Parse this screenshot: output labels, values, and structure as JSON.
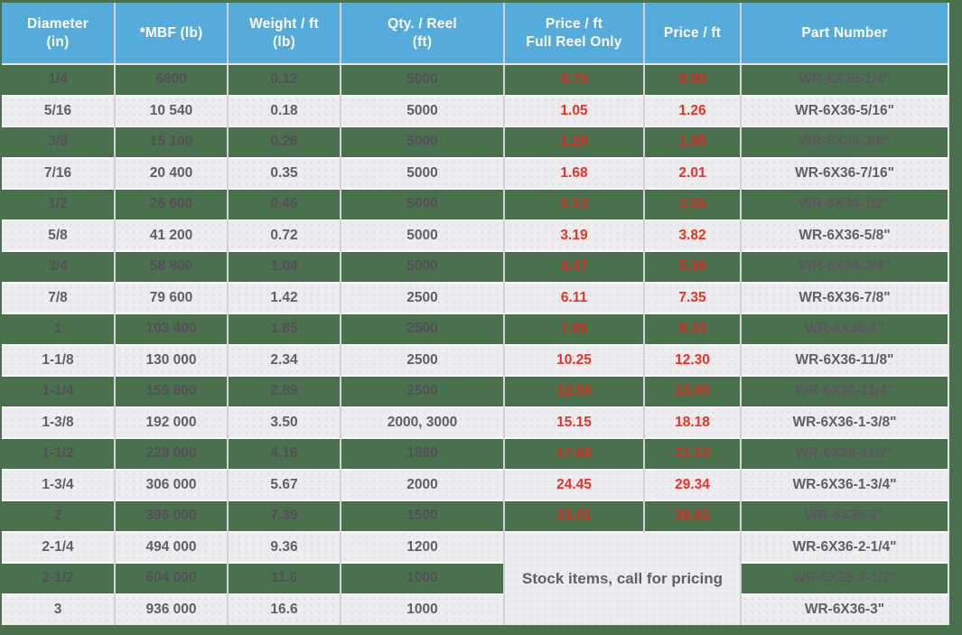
{
  "table": {
    "columns": [
      {
        "key": "diameter",
        "label": "Diameter\n(in)"
      },
      {
        "key": "mbf",
        "label": "*MBF (lb)"
      },
      {
        "key": "weight",
        "label": "Weight / ft\n(lb)"
      },
      {
        "key": "qty",
        "label": "Qty. / Reel\n(ft)"
      },
      {
        "key": "price_full",
        "label": "Price /  ft\nFull Reel Only"
      },
      {
        "key": "price",
        "label": "Price / ft"
      },
      {
        "key": "part",
        "label": "Part Number"
      }
    ],
    "rows": [
      {
        "diameter": "1/4",
        "mbf": "6800",
        "weight": "0.12",
        "qty": "5000",
        "price_full": "0.75",
        "price": "0.90",
        "part": "WR-6X36-1/4\""
      },
      {
        "diameter": "5/16",
        "mbf": "10 540",
        "weight": "0.18",
        "qty": "5000",
        "price_full": "1.05",
        "price": "1.26",
        "part": "WR-6X36-5/16\""
      },
      {
        "diameter": "3/8",
        "mbf": "15 100",
        "weight": "0.26",
        "qty": "5000",
        "price_full": "1.29",
        "price": "1.55",
        "part": "WR-6X36-3/8\""
      },
      {
        "diameter": "7/16",
        "mbf": "20 400",
        "weight": "0.35",
        "qty": "5000",
        "price_full": "1.68",
        "price": "2.01",
        "part": "WR-6X36-7/16\""
      },
      {
        "diameter": "1/2",
        "mbf": "26 600",
        "weight": "0.46",
        "qty": "5000",
        "price_full": "2.13",
        "price": "2.55",
        "part": "WR-6X36-1/2\""
      },
      {
        "diameter": "5/8",
        "mbf": "41 200",
        "weight": "0.72",
        "qty": "5000",
        "price_full": "3.19",
        "price": "3.82",
        "part": "WR-6X36-5/8\""
      },
      {
        "diameter": "3/4",
        "mbf": "58 800",
        "weight": "1.04",
        "qty": "5000",
        "price_full": "4.47",
        "price": "5.36",
        "part": "WR-6X36-3/4\""
      },
      {
        "diameter": "7/8",
        "mbf": "79 600",
        "weight": "1.42",
        "qty": "2500",
        "price_full": "6.11",
        "price": "7.35",
        "part": "WR-6X36-7/8\""
      },
      {
        "diameter": "1",
        "mbf": "103 400",
        "weight": "1.85",
        "qty": "2500",
        "price_full": "7.85",
        "price": "9.33",
        "part": "WR-6X36-1\""
      },
      {
        "diameter": "1-1/8",
        "mbf": "130 000",
        "weight": "2.34",
        "qty": "2500",
        "price_full": "10.25",
        "price": "12.30",
        "part": "WR-6X36-11/8\""
      },
      {
        "diameter": "1-1/4",
        "mbf": "159 800",
        "weight": "2.89",
        "qty": "2500",
        "price_full": "12.50",
        "price": "15.00",
        "part": "WR-6X36-11/4\""
      },
      {
        "diameter": "1-3/8",
        "mbf": "192 000",
        "weight": "3.50",
        "qty": "2000, 3000",
        "price_full": "15.15",
        "price": "18.18",
        "part": "WR-6X36-1-3/8\""
      },
      {
        "diameter": "1-1/2",
        "mbf": "228 000",
        "weight": "4.16",
        "qty": "1860",
        "price_full": "17.60",
        "price": "21.12",
        "part": "WR-6X36-11/2\""
      },
      {
        "diameter": "1-3/4",
        "mbf": "306 000",
        "weight": "5.67",
        "qty": "2000",
        "price_full": "24.45",
        "price": "29.34",
        "part": "WR-6X36-1-3/4\""
      },
      {
        "diameter": "2",
        "mbf": "396 000",
        "weight": "7.39",
        "qty": "1500",
        "price_full": "33.01",
        "price": "39.61",
        "part": "WR-6X36-2\""
      },
      {
        "diameter": "2-1/4",
        "mbf": "494 000",
        "weight": "9.36",
        "qty": "1200",
        "price_full": "",
        "price": "",
        "part": "WR-6X36-2-1/4\""
      },
      {
        "diameter": "2-1/2",
        "mbf": "604 000",
        "weight": "11.6",
        "qty": "1000",
        "price_full": "",
        "price": "",
        "part": "WR-6X36-2-1/2\""
      },
      {
        "diameter": "3",
        "mbf": "936 000",
        "weight": "16.6",
        "qty": "1000",
        "price_full": "",
        "price": "",
        "part": "WR-6X36-3\""
      }
    ],
    "stock_note": "Stock items, call for pricing",
    "stock_note_row_count": 3
  },
  "colors": {
    "header_blue": "#56abdd",
    "row_green": "#49714e",
    "row_light": "#ededef",
    "page_green": "#49714e",
    "price_red": "#ee3124",
    "price_red_on_green": "#d92a1e",
    "text_gray": "#615e66",
    "text_on_green": "#554e58",
    "part_on_green": "#5c5660",
    "divider": "#d2d2d6"
  }
}
